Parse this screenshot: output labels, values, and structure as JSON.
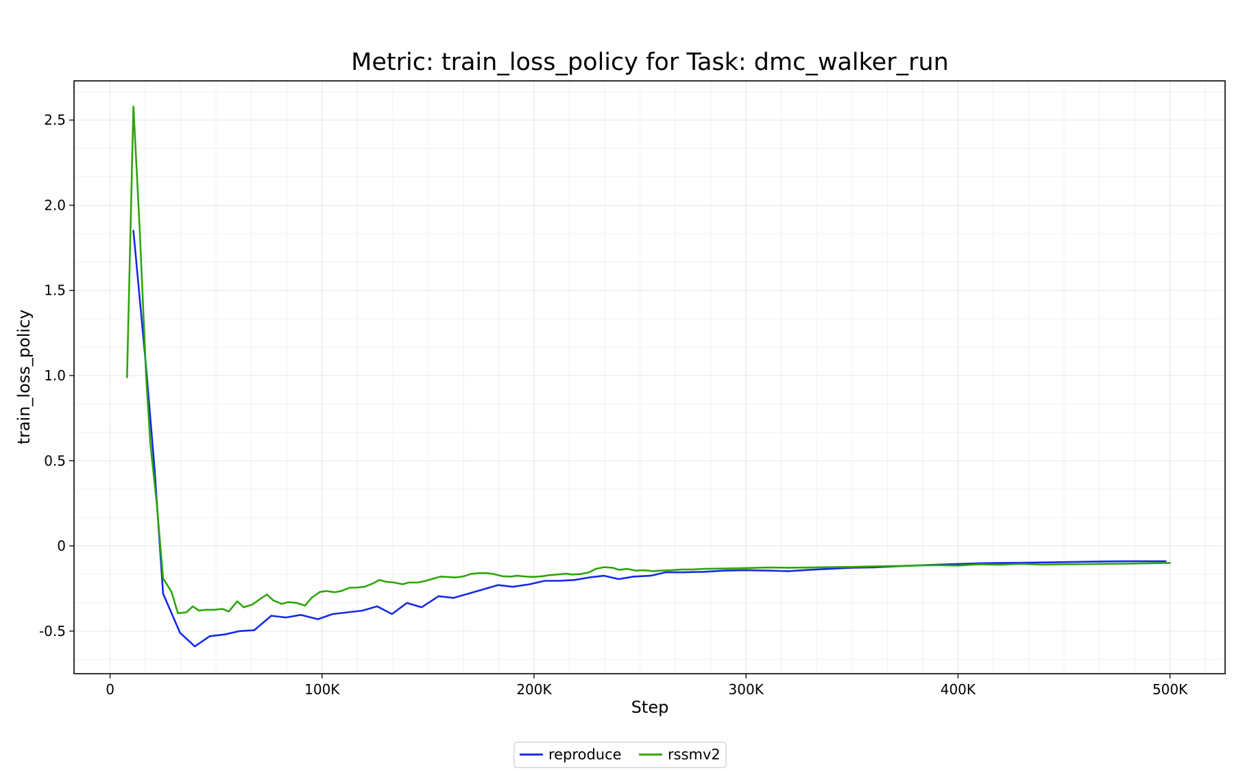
{
  "chart_data": {
    "type": "line",
    "title": "Metric: train_loss_policy for Task: dmc_walker_run",
    "xlabel": "Step",
    "ylabel": "train_loss_policy",
    "xlim": [
      -17000,
      526000
    ],
    "ylim": [
      -0.75,
      2.73
    ],
    "x_ticks": [
      0,
      100000,
      200000,
      300000,
      400000,
      500000
    ],
    "x_tick_labels": [
      "0",
      "100K",
      "200K",
      "300K",
      "400K",
      "500K"
    ],
    "y_ticks": [
      -0.5,
      0,
      0.5,
      1.0,
      1.5,
      2.0,
      2.5
    ],
    "y_tick_labels": [
      "-0.5",
      "0",
      "0.5",
      "1.0",
      "1.5",
      "2.0",
      "2.5"
    ],
    "x_minor_step": 16667,
    "y_minor_step": 0.1667,
    "grid": true,
    "legend_placement": "bottom-center",
    "series": [
      {
        "name": "reproduce",
        "color": "#1428e6",
        "points": [
          [
            11000,
            1.85
          ],
          [
            17000,
            1.05
          ],
          [
            21000,
            0.45
          ],
          [
            25000,
            -0.28
          ],
          [
            33000,
            -0.51
          ],
          [
            40000,
            -0.59
          ],
          [
            47000,
            -0.53
          ],
          [
            54000,
            -0.52
          ],
          [
            61000,
            -0.5
          ],
          [
            68000,
            -0.495
          ],
          [
            76000,
            -0.41
          ],
          [
            83000,
            -0.42
          ],
          [
            90000,
            -0.405
          ],
          [
            98000,
            -0.43
          ],
          [
            105000,
            -0.4
          ],
          [
            112000,
            -0.39
          ],
          [
            119000,
            -0.38
          ],
          [
            126000,
            -0.355
          ],
          [
            133000,
            -0.4
          ],
          [
            140000,
            -0.335
          ],
          [
            147000,
            -0.36
          ],
          [
            155000,
            -0.295
          ],
          [
            162000,
            -0.305
          ],
          [
            169000,
            -0.28
          ],
          [
            176000,
            -0.255
          ],
          [
            183000,
            -0.23
          ],
          [
            190000,
            -0.24
          ],
          [
            198000,
            -0.225
          ],
          [
            205000,
            -0.205
          ],
          [
            212000,
            -0.205
          ],
          [
            219000,
            -0.2
          ],
          [
            226000,
            -0.185
          ],
          [
            233000,
            -0.175
          ],
          [
            240000,
            -0.195
          ],
          [
            247000,
            -0.18
          ],
          [
            255000,
            -0.175
          ],
          [
            262000,
            -0.155
          ],
          [
            270000,
            -0.155
          ],
          [
            280000,
            -0.152
          ],
          [
            290000,
            -0.145
          ],
          [
            300000,
            -0.142
          ],
          [
            310000,
            -0.145
          ],
          [
            320000,
            -0.148
          ],
          [
            330000,
            -0.14
          ],
          [
            340000,
            -0.134
          ],
          [
            350000,
            -0.128
          ],
          [
            360000,
            -0.126
          ],
          [
            370000,
            -0.12
          ],
          [
            380000,
            -0.115
          ],
          [
            390000,
            -0.11
          ],
          [
            400000,
            -0.106
          ],
          [
            410000,
            -0.102
          ],
          [
            420000,
            -0.1
          ],
          [
            430000,
            -0.099
          ],
          [
            440000,
            -0.097
          ],
          [
            450000,
            -0.095
          ],
          [
            460000,
            -0.093
          ],
          [
            470000,
            -0.091
          ],
          [
            480000,
            -0.09
          ],
          [
            490000,
            -0.09
          ],
          [
            498000,
            -0.09
          ]
        ]
      },
      {
        "name": "rssmv2",
        "color": "#2ca50a",
        "points": [
          [
            8000,
            0.99
          ],
          [
            11000,
            2.58
          ],
          [
            14000,
            1.85
          ],
          [
            17000,
            1.0
          ],
          [
            19000,
            0.6
          ],
          [
            22000,
            0.25
          ],
          [
            25000,
            -0.19
          ],
          [
            29000,
            -0.27
          ],
          [
            32000,
            -0.395
          ],
          [
            36000,
            -0.39
          ],
          [
            39000,
            -0.355
          ],
          [
            42000,
            -0.38
          ],
          [
            45000,
            -0.375
          ],
          [
            49000,
            -0.375
          ],
          [
            53000,
            -0.37
          ],
          [
            56000,
            -0.385
          ],
          [
            60000,
            -0.325
          ],
          [
            63000,
            -0.36
          ],
          [
            67000,
            -0.345
          ],
          [
            71000,
            -0.31
          ],
          [
            74000,
            -0.285
          ],
          [
            77000,
            -0.32
          ],
          [
            81000,
            -0.34
          ],
          [
            84000,
            -0.33
          ],
          [
            88000,
            -0.335
          ],
          [
            92000,
            -0.35
          ],
          [
            95000,
            -0.305
          ],
          [
            99000,
            -0.27
          ],
          [
            102000,
            -0.265
          ],
          [
            106000,
            -0.272
          ],
          [
            109000,
            -0.265
          ],
          [
            113000,
            -0.245
          ],
          [
            116000,
            -0.245
          ],
          [
            120000,
            -0.24
          ],
          [
            124000,
            -0.22
          ],
          [
            127000,
            -0.2
          ],
          [
            130000,
            -0.21
          ],
          [
            134000,
            -0.215
          ],
          [
            138000,
            -0.225
          ],
          [
            141000,
            -0.215
          ],
          [
            145000,
            -0.215
          ],
          [
            149000,
            -0.205
          ],
          [
            153000,
            -0.19
          ],
          [
            156000,
            -0.18
          ],
          [
            160000,
            -0.183
          ],
          [
            163000,
            -0.185
          ],
          [
            167000,
            -0.178
          ],
          [
            170000,
            -0.165
          ],
          [
            174000,
            -0.16
          ],
          [
            178000,
            -0.16
          ],
          [
            181000,
            -0.165
          ],
          [
            185000,
            -0.178
          ],
          [
            189000,
            -0.18
          ],
          [
            192000,
            -0.175
          ],
          [
            196000,
            -0.18
          ],
          [
            200000,
            -0.182
          ],
          [
            204000,
            -0.178
          ],
          [
            207000,
            -0.172
          ],
          [
            211000,
            -0.168
          ],
          [
            215000,
            -0.163
          ],
          [
            218000,
            -0.168
          ],
          [
            222000,
            -0.165
          ],
          [
            226000,
            -0.155
          ],
          [
            229000,
            -0.135
          ],
          [
            233000,
            -0.125
          ],
          [
            237000,
            -0.128
          ],
          [
            240000,
            -0.14
          ],
          [
            244000,
            -0.135
          ],
          [
            248000,
            -0.145
          ],
          [
            252000,
            -0.143
          ],
          [
            256000,
            -0.148
          ],
          [
            260000,
            -0.145
          ],
          [
            265000,
            -0.142
          ],
          [
            270000,
            -0.138
          ],
          [
            275000,
            -0.138
          ],
          [
            280000,
            -0.135
          ],
          [
            290000,
            -0.133
          ],
          [
            300000,
            -0.13
          ],
          [
            310000,
            -0.127
          ],
          [
            320000,
            -0.128
          ],
          [
            330000,
            -0.127
          ],
          [
            340000,
            -0.125
          ],
          [
            350000,
            -0.123
          ],
          [
            360000,
            -0.12
          ],
          [
            370000,
            -0.118
          ],
          [
            380000,
            -0.115
          ],
          [
            390000,
            -0.113
          ],
          [
            400000,
            -0.115
          ],
          [
            410000,
            -0.108
          ],
          [
            420000,
            -0.11
          ],
          [
            430000,
            -0.105
          ],
          [
            440000,
            -0.11
          ],
          [
            450000,
            -0.108
          ],
          [
            460000,
            -0.107
          ],
          [
            470000,
            -0.105
          ],
          [
            480000,
            -0.104
          ],
          [
            490000,
            -0.102
          ],
          [
            500000,
            -0.1
          ]
        ]
      }
    ]
  }
}
